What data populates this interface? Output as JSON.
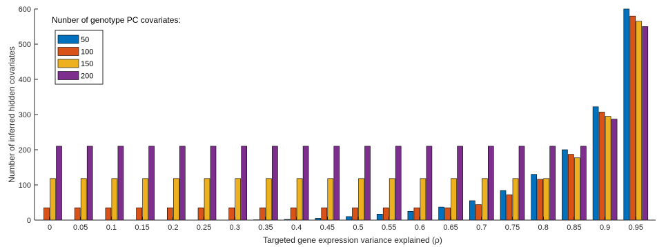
{
  "chart_data": {
    "type": "bar",
    "xlabel": "Targeted gene expression variance explained (ρ)",
    "ylabel": "Number of inferred hidden covariates",
    "ylim": [
      0,
      600
    ],
    "yticks": [
      0,
      100,
      200,
      300,
      400,
      500,
      600
    ],
    "categories": [
      "0",
      "0.05",
      "0.1",
      "0.15",
      "0.2",
      "0.25",
      "0.3",
      "0.35",
      "0.4",
      "0.45",
      "0.5",
      "0.55",
      "0.6",
      "0.65",
      "0.7",
      "0.75",
      "0.8",
      "0.85",
      "0.9",
      "0.95"
    ],
    "legend": {
      "title": "Nunber of genotype PC covariates:",
      "position": "top-left"
    },
    "series": [
      {
        "name": "50",
        "color": "#0072BD",
        "values": [
          0,
          0,
          0,
          0,
          0,
          0,
          0,
          1,
          2,
          5,
          10,
          17,
          25,
          37,
          55,
          84,
          130,
          200,
          322,
          600
        ]
      },
      {
        "name": "100",
        "color": "#D95319",
        "values": [
          35,
          35,
          35,
          35,
          35,
          35,
          35,
          35,
          35,
          35,
          35,
          35,
          35,
          35,
          44,
          72,
          116,
          187,
          307,
          580
        ]
      },
      {
        "name": "150",
        "color": "#EDB120",
        "values": [
          118,
          118,
          118,
          118,
          118,
          118,
          118,
          118,
          118,
          118,
          118,
          118,
          118,
          118,
          118,
          118,
          118,
          177,
          295,
          565
        ]
      },
      {
        "name": "200",
        "color": "#7E2F8E",
        "values": [
          210,
          210,
          210,
          210,
          210,
          210,
          210,
          210,
          210,
          210,
          210,
          210,
          210,
          210,
          210,
          210,
          210,
          210,
          287,
          550
        ]
      }
    ]
  }
}
